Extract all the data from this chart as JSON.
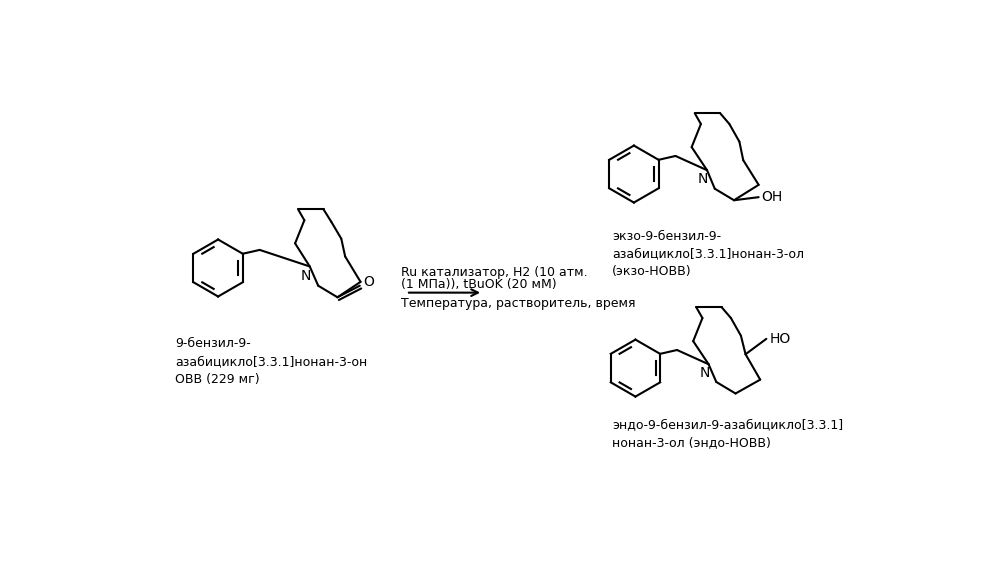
{
  "bg_color": "#ffffff",
  "text_color": "#000000",
  "line_color": "#000000",
  "line_width": 1.5,
  "fig_width": 9.98,
  "fig_height": 5.65,
  "reactant_label": "9-бензил-9-\nазабицикло[3.3.1]нонан-3-он\nОВВ (229 мг)",
  "product1_label": "экзо-9-бензил-9-\nазабицикло[3.3.1]нонан-3-ол\n(экзо-НОВВ)",
  "product2_label": "эндо-9-бензил-9-азабицикло[3.3.1]\nнонан-3-ол (эндо-НОВВ)",
  "arrow_line1": "Ru катализатор, H2 (10 атм.",
  "arrow_line2": "(1 МПа)), tBuOK (20 мМ)",
  "arrow_line3": "Температура, растворитель, время",
  "font_size": 9.0
}
